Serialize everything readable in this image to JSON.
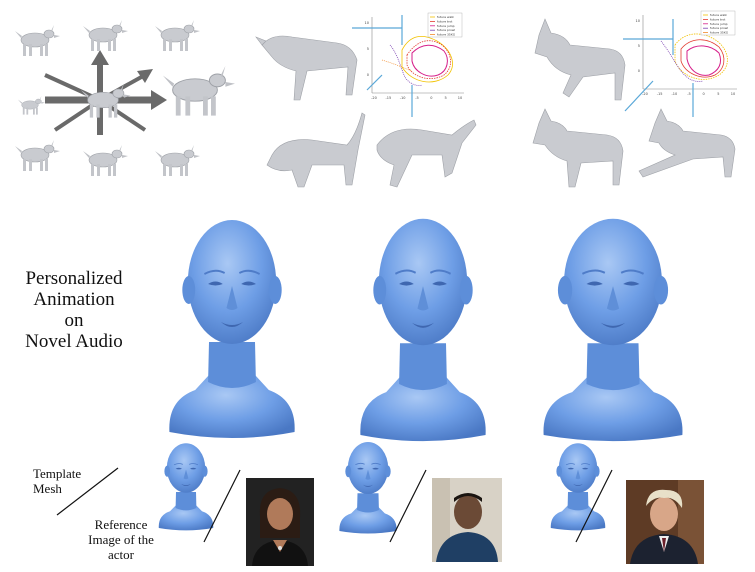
{
  "figure": {
    "main_label_lines": [
      "Personalized",
      "Animation",
      "on",
      "Novel Audio"
    ],
    "template_label_lines": [
      "Template",
      "Mesh"
    ],
    "reference_label_lines": [
      "Reference",
      "Image of the",
      "actor"
    ]
  },
  "plots": [
    {
      "legend": [
        "future walk",
        "future trot",
        "future jump",
        "future prowl",
        "future 35KG"
      ],
      "x_ticks": [
        "-20",
        "-15",
        "-10",
        "-5",
        "0",
        "5",
        "10"
      ],
      "y_ticks": [
        "10",
        "5",
        "0"
      ]
    },
    {
      "legend": [
        "future walk",
        "future trot",
        "future jump",
        "future prowl",
        "future 35KG"
      ],
      "x_ticks": [
        "-20",
        "-15",
        "-10",
        "-5",
        "0",
        "5",
        "10"
      ],
      "y_ticks": [
        "10",
        "5",
        "0"
      ]
    }
  ],
  "colors": {
    "head_mesh": "#6e9ee6",
    "head_shadow": "#4a78c4",
    "dog_mesh": "#c9cbd0",
    "arrow": "#6a6a6a",
    "guide_line": "#5aa8d8",
    "legend_series": [
      "#f2c200",
      "#e23b2f",
      "#d61f8a",
      "#7a3fb0",
      "#f28b2a"
    ]
  }
}
